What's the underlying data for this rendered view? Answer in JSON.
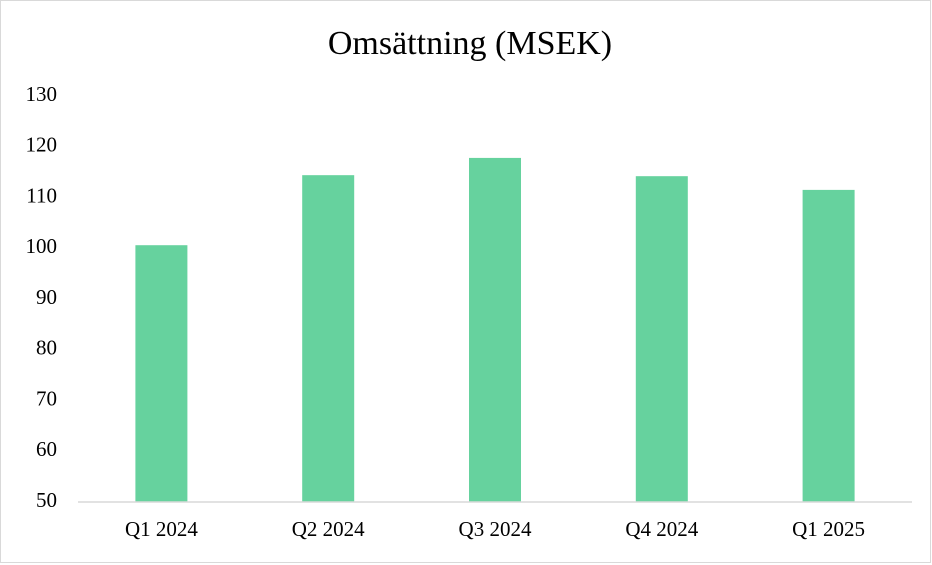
{
  "chart_data": {
    "type": "bar",
    "title": "Omsättning (MSEK)",
    "categories": [
      "Q1 2024",
      "Q2 2024",
      "Q3 2024",
      "Q4 2024",
      "Q1 2025"
    ],
    "values": [
      100.6,
      114.4,
      117.8,
      114.2,
      111.5
    ],
    "color": "#66d29e",
    "ylim": [
      50,
      130
    ],
    "yticks": [
      50,
      60,
      70,
      80,
      90,
      100,
      110,
      120,
      130
    ],
    "grid": false
  }
}
